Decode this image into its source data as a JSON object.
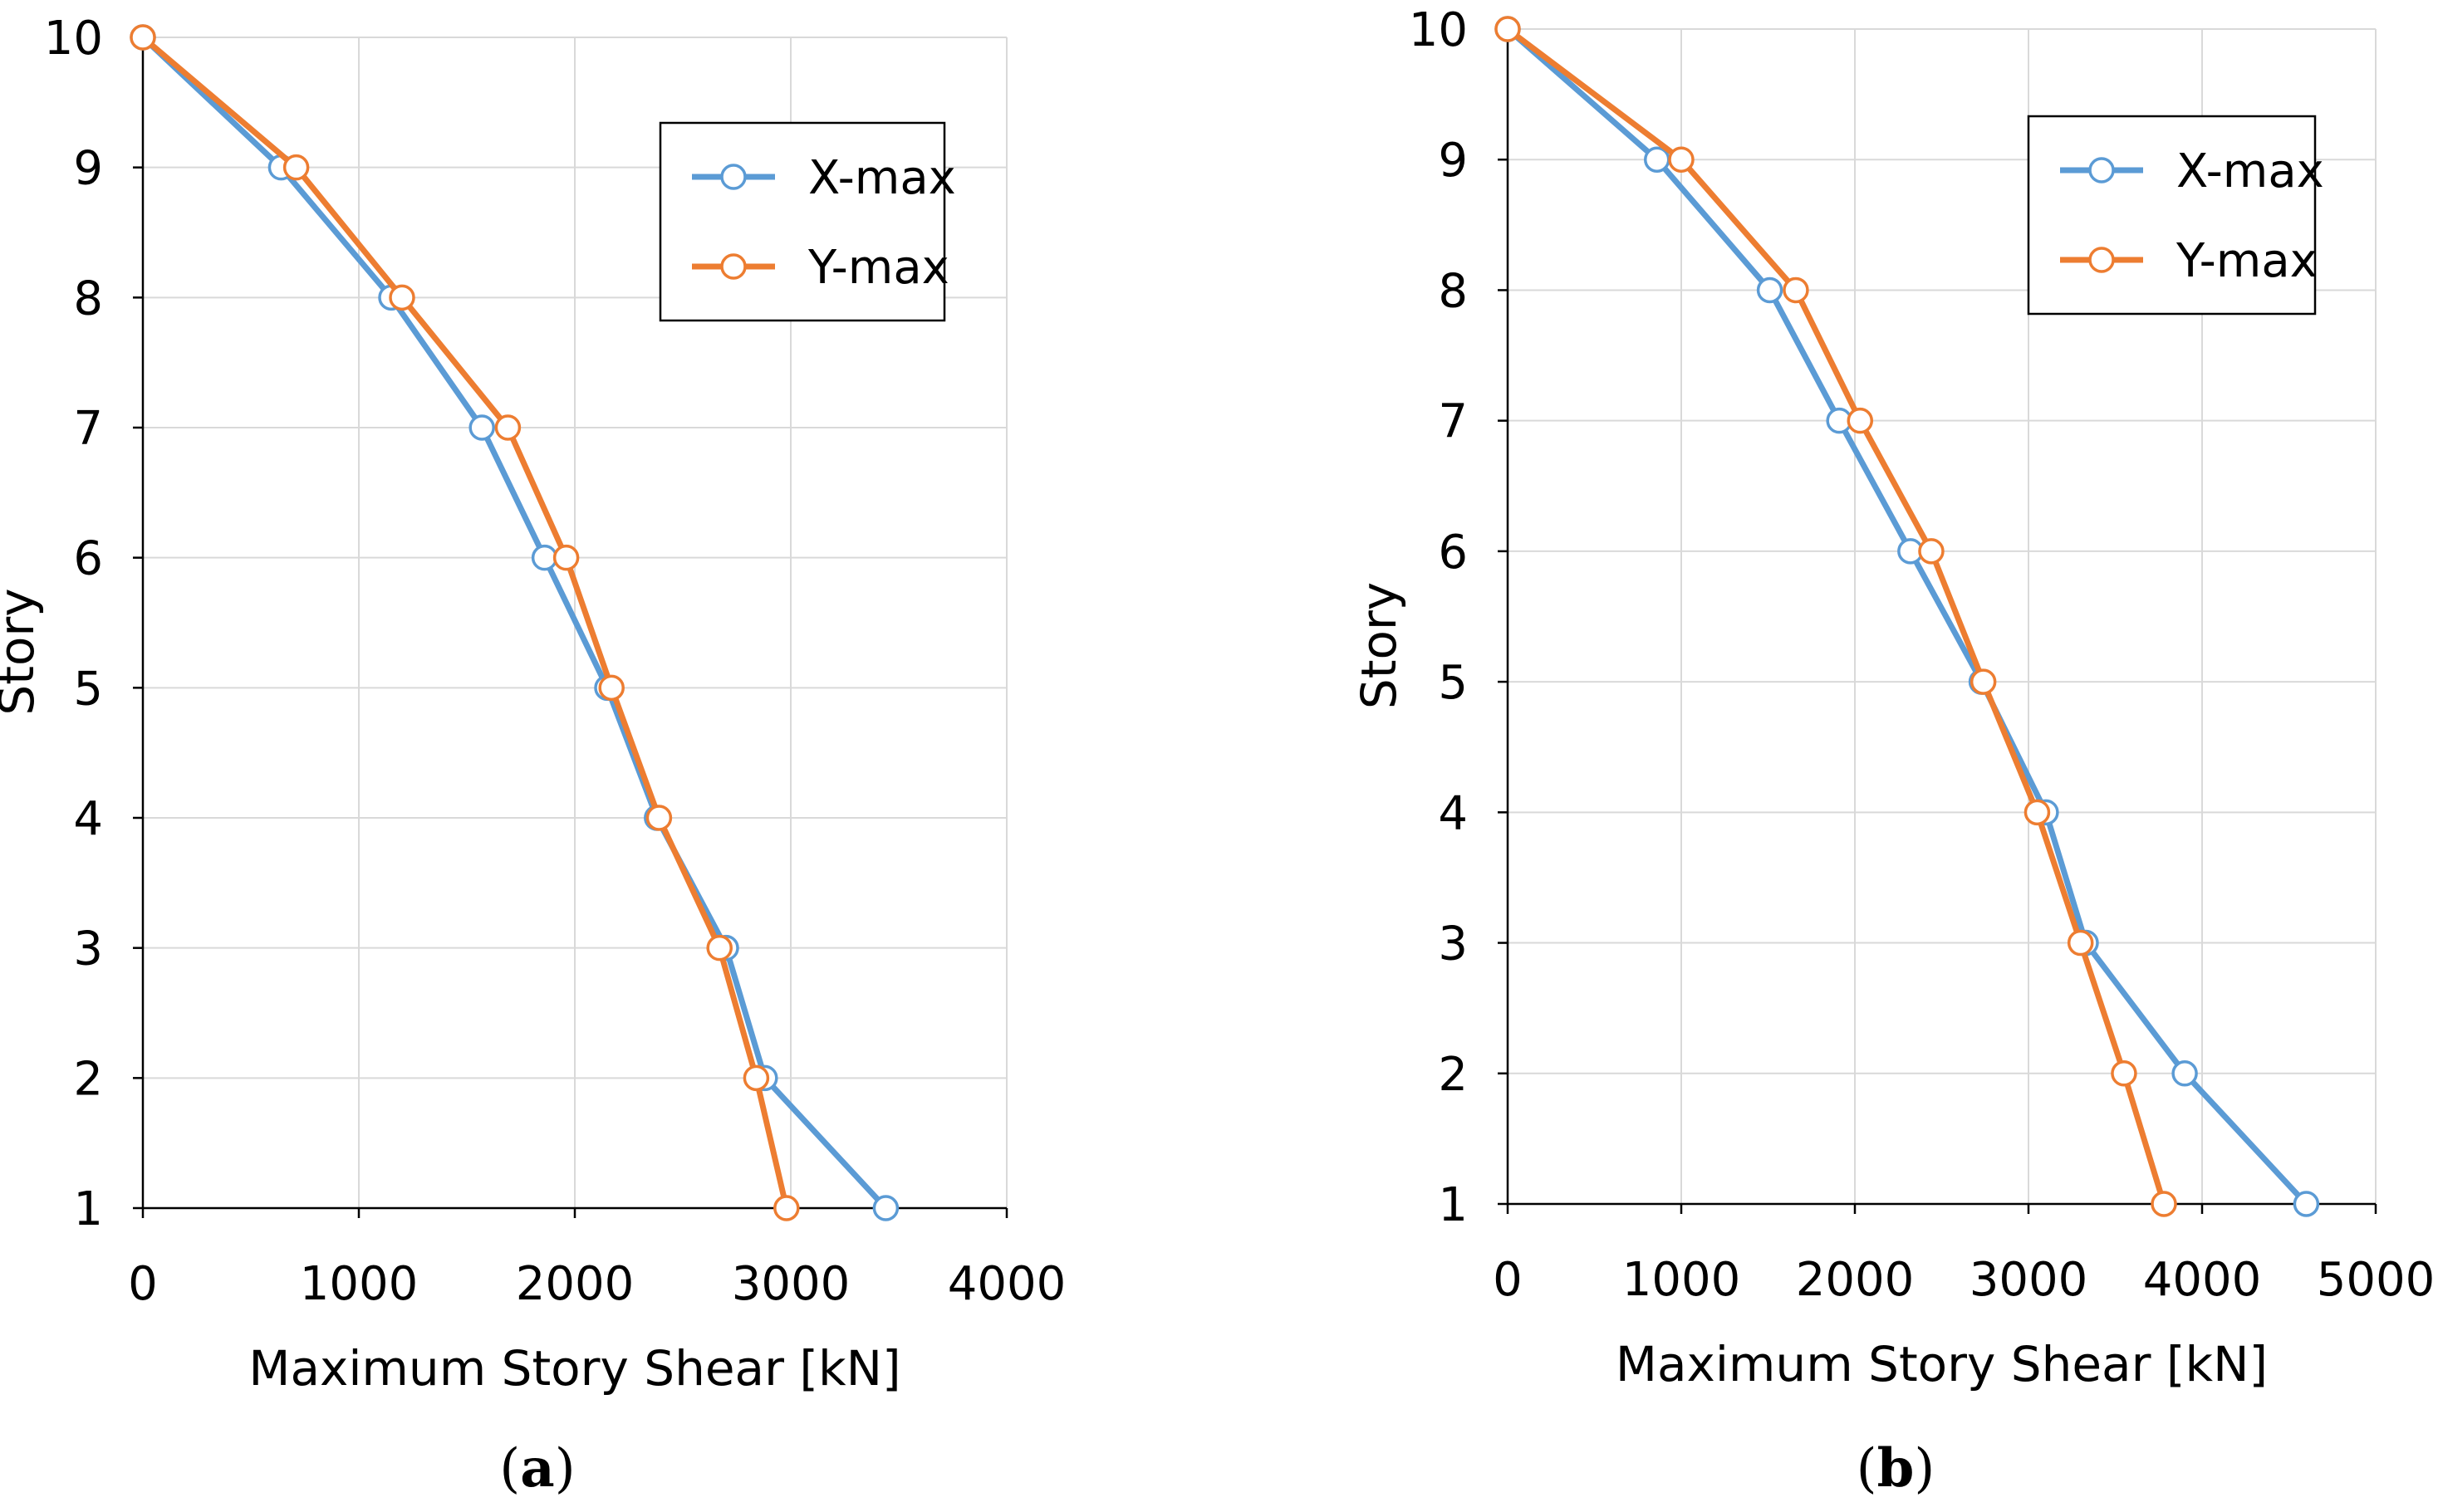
{
  "figure": {
    "captions": [
      {
        "open": "(",
        "letter": "a",
        "close": ")"
      },
      {
        "open": "(",
        "letter": "b",
        "close": ")"
      }
    ]
  },
  "chart_data": [
    {
      "type": "line",
      "panel": "a",
      "xlabel": "Maximum Story Shear [kN]",
      "ylabel": "Story",
      "xlim": [
        0,
        4000
      ],
      "ylim": [
        1,
        10
      ],
      "xticks": [
        0,
        1000,
        2000,
        3000,
        4000
      ],
      "yticks": [
        1,
        2,
        3,
        4,
        5,
        6,
        7,
        8,
        9,
        10
      ],
      "grid": true,
      "legend_position": "top-right",
      "series": [
        {
          "name": "X-max",
          "color": "#5B9BD5",
          "points": [
            [
              3440,
              1
            ],
            [
              2880,
              2
            ],
            [
              2700,
              3
            ],
            [
              2380,
              4
            ],
            [
              2150,
              5
            ],
            [
              1860,
              6
            ],
            [
              1570,
              7
            ],
            [
              1150,
              8
            ],
            [
              640,
              9
            ],
            [
              0,
              10
            ]
          ]
        },
        {
          "name": "Y-max",
          "color": "#ED7D31",
          "points": [
            [
              2980,
              1
            ],
            [
              2840,
              2
            ],
            [
              2670,
              3
            ],
            [
              2390,
              4
            ],
            [
              2170,
              5
            ],
            [
              1960,
              6
            ],
            [
              1690,
              7
            ],
            [
              1200,
              8
            ],
            [
              710,
              9
            ],
            [
              0,
              10
            ]
          ]
        }
      ]
    },
    {
      "type": "line",
      "panel": "b",
      "xlabel": "Maximum Story Shear [kN]",
      "ylabel": "Story",
      "xlim": [
        0,
        5000
      ],
      "ylim": [
        1,
        10
      ],
      "xticks": [
        0,
        1000,
        2000,
        3000,
        4000,
        5000
      ],
      "yticks": [
        1,
        2,
        3,
        4,
        5,
        6,
        7,
        8,
        9,
        10
      ],
      "grid": true,
      "legend_position": "top-right",
      "series": [
        {
          "name": "X-max",
          "color": "#5B9BD5",
          "points": [
            [
              4600,
              1
            ],
            [
              3900,
              2
            ],
            [
              3330,
              3
            ],
            [
              3100,
              4
            ],
            [
              2730,
              5
            ],
            [
              2320,
              6
            ],
            [
              1910,
              7
            ],
            [
              1510,
              8
            ],
            [
              860,
              9
            ],
            [
              0,
              10
            ]
          ]
        },
        {
          "name": "Y-max",
          "color": "#ED7D31",
          "points": [
            [
              3780,
              1
            ],
            [
              3550,
              2
            ],
            [
              3300,
              3
            ],
            [
              3050,
              4
            ],
            [
              2740,
              5
            ],
            [
              2440,
              6
            ],
            [
              2030,
              7
            ],
            [
              1660,
              8
            ],
            [
              1000,
              9
            ],
            [
              0,
              10
            ]
          ]
        }
      ]
    }
  ]
}
